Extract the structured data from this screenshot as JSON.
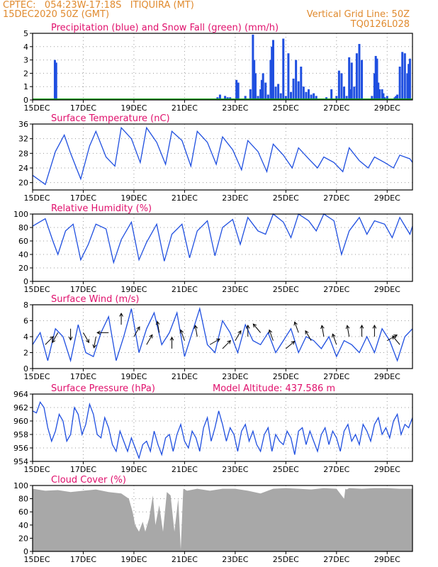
{
  "header": {
    "line1_left": "CPTEC:   054:23W-17:18S   ITIQUIRA (MT)",
    "line2_left": "15DEC2020 50Z (GMT)",
    "line2_right": "Vertical Grid Line: 50Z",
    "line3_right": "TQ0126L028"
  },
  "colors": {
    "header": "#e08a2e",
    "title": "#e0106c",
    "series": "#1f4fe0",
    "snow": "#12a012",
    "cloud": "#a8a8a8",
    "grid": "#9a9a9a",
    "arrow": "#000000"
  },
  "x_axis": {
    "ticks": [
      "15DEC",
      "17DEC",
      "19DEC",
      "21DEC",
      "23DEC",
      "25DEC",
      "27DEC",
      "29DEC"
    ],
    "tick_days": [
      0,
      2,
      4,
      6,
      8,
      10,
      12,
      14
    ],
    "range_days": [
      0,
      15
    ]
  },
  "chart_data": [
    {
      "type": "bar",
      "title": "Precipitation (blue) and Snow Fall (green) (mm/h)",
      "ylim": [
        0,
        5
      ],
      "yticks": [
        "0",
        "1",
        "2",
        "3",
        "4",
        "5"
      ],
      "ytick_values": [
        0,
        1,
        2,
        3,
        4,
        5
      ],
      "x_unit": "days since 15DEC 00Z",
      "series": [
        {
          "name": "Precipitation",
          "color": "#1f4fe0",
          "x": [
            0.88,
            0.93,
            7.3,
            7.4,
            7.6,
            7.7,
            7.8,
            8.05,
            8.12,
            8.4,
            8.6,
            8.7,
            8.75,
            8.8,
            8.9,
            9.0,
            9.05,
            9.1,
            9.2,
            9.3,
            9.4,
            9.45,
            9.5,
            9.6,
            9.7,
            9.8,
            9.9,
            10.0,
            10.1,
            10.2,
            10.3,
            10.4,
            10.5,
            10.6,
            10.7,
            10.8,
            10.9,
            11.0,
            11.1,
            11.2,
            11.4,
            11.6,
            11.8,
            12.0,
            12.1,
            12.2,
            12.3,
            12.4,
            12.5,
            12.55,
            12.6,
            12.7,
            12.8,
            12.9,
            13.0,
            13.4,
            13.5,
            13.55,
            13.6,
            13.65,
            13.7,
            13.8,
            13.85,
            13.9,
            14.0,
            14.1,
            14.2,
            14.3,
            14.35,
            14.4,
            14.5,
            14.6,
            14.7,
            14.8,
            14.85,
            14.9
          ],
          "y": [
            3.0,
            2.8,
            0.2,
            0.4,
            0.3,
            0.2,
            0.2,
            1.5,
            1.3,
            0.3,
            0.8,
            4.9,
            3.0,
            2.0,
            0.3,
            0.8,
            1.5,
            2.0,
            1.3,
            0.4,
            3.0,
            4.0,
            4.5,
            1.0,
            1.2,
            0.5,
            4.6,
            0.3,
            3.5,
            0.6,
            1.6,
            3.0,
            1.4,
            2.5,
            1.0,
            0.6,
            0.8,
            0.4,
            0.5,
            0.3,
            0.1,
            0.2,
            0.8,
            0.3,
            2.2,
            2.0,
            1.0,
            0.3,
            3.2,
            0.8,
            2.8,
            1.0,
            3.5,
            4.2,
            3.0,
            0.3,
            2.0,
            3.3,
            3.1,
            1.3,
            0.8,
            0.8,
            0.5,
            0.2,
            0.3,
            0.1,
            0.1,
            0.2,
            0.3,
            0.4,
            2.5,
            3.6,
            3.5,
            2.0,
            2.7,
            3.1
          ]
        },
        {
          "name": "Snow Fall",
          "color": "#12a012",
          "x": [
            0,
            15
          ],
          "y": [
            0,
            0
          ]
        }
      ]
    },
    {
      "type": "line",
      "title": "Surface Temperature (nC)",
      "ylim": [
        18,
        36
      ],
      "yticks": [
        "20",
        "24",
        "28",
        "32",
        "36"
      ],
      "ytick_values": [
        20,
        24,
        28,
        32,
        36
      ],
      "x": [
        0,
        0.5,
        0.9,
        1.25,
        1.5,
        1.9,
        2.25,
        2.5,
        2.9,
        3.25,
        3.5,
        3.9,
        4.25,
        4.5,
        4.9,
        5.25,
        5.5,
        5.9,
        6.25,
        6.5,
        6.9,
        7.25,
        7.5,
        7.9,
        8.25,
        8.5,
        8.9,
        9.25,
        9.5,
        9.9,
        10.25,
        10.5,
        10.9,
        11.25,
        11.5,
        11.9,
        12.25,
        12.5,
        12.9,
        13.25,
        13.5,
        13.9,
        14.25,
        14.5,
        14.9,
        15.0
      ],
      "series": [
        {
          "name": "Temperature",
          "color": "#1f4fe0",
          "values": [
            22.0,
            19.5,
            28.5,
            33.0,
            28.0,
            21.0,
            30.0,
            34.0,
            27.0,
            24.5,
            35.0,
            32.0,
            25.5,
            35.0,
            31.0,
            25.0,
            34.0,
            31.5,
            24.5,
            34.0,
            31.0,
            25.0,
            32.5,
            29.0,
            23.5,
            31.5,
            28.5,
            23.0,
            30.5,
            27.5,
            24.0,
            29.5,
            26.5,
            24.0,
            27.0,
            25.5,
            23.0,
            29.5,
            26.0,
            24.0,
            27.0,
            25.5,
            24.0,
            27.5,
            26.5,
            25.5
          ]
        }
      ]
    },
    {
      "type": "line",
      "title": "Relative Humidity (%)",
      "ylim": [
        0,
        100
      ],
      "yticks": [
        "0",
        "20",
        "40",
        "60",
        "80",
        "100"
      ],
      "ytick_values": [
        0,
        20,
        40,
        60,
        80,
        100
      ],
      "x": [
        0,
        0.5,
        0.8,
        1.0,
        1.3,
        1.6,
        1.9,
        2.2,
        2.5,
        2.9,
        3.2,
        3.5,
        3.9,
        4.2,
        4.5,
        4.9,
        5.2,
        5.5,
        5.9,
        6.2,
        6.5,
        6.9,
        7.2,
        7.5,
        7.9,
        8.2,
        8.5,
        8.9,
        9.2,
        9.5,
        9.9,
        10.2,
        10.5,
        10.9,
        11.2,
        11.5,
        11.9,
        12.2,
        12.5,
        12.9,
        13.2,
        13.5,
        13.9,
        14.2,
        14.5,
        14.9,
        15.0
      ],
      "series": [
        {
          "name": "Humidity",
          "color": "#1f4fe0",
          "values": [
            82,
            93,
            60,
            40,
            75,
            85,
            32,
            55,
            85,
            78,
            28,
            62,
            88,
            32,
            58,
            85,
            30,
            70,
            85,
            35,
            75,
            90,
            38,
            80,
            92,
            55,
            95,
            75,
            70,
            100,
            88,
            65,
            100,
            90,
            75,
            100,
            90,
            40,
            75,
            95,
            70,
            90,
            85,
            65,
            95,
            70,
            82
          ]
        }
      ]
    },
    {
      "type": "line",
      "title": "Surface Wind (m/s)",
      "ylim": [
        0,
        8
      ],
      "yticks": [
        "0",
        "2",
        "4",
        "6",
        "8"
      ],
      "ytick_values": [
        0,
        2,
        4,
        6,
        8
      ],
      "x": [
        0,
        0.3,
        0.6,
        0.9,
        1.2,
        1.5,
        1.8,
        2.1,
        2.4,
        2.7,
        3.0,
        3.3,
        3.6,
        3.9,
        4.2,
        4.5,
        4.8,
        5.1,
        5.4,
        5.7,
        6.0,
        6.3,
        6.6,
        6.9,
        7.2,
        7.5,
        7.8,
        8.1,
        8.4,
        8.7,
        9.0,
        9.3,
        9.6,
        9.9,
        10.2,
        10.5,
        10.8,
        11.1,
        11.4,
        11.7,
        12.0,
        12.3,
        12.6,
        12.9,
        13.2,
        13.5,
        13.8,
        14.1,
        14.4,
        14.7,
        15.0
      ],
      "series": [
        {
          "name": "Wind speed",
          "color": "#1f4fe0",
          "values": [
            3.0,
            4.5,
            1.0,
            5.0,
            4.0,
            1.0,
            5.5,
            2.0,
            1.5,
            4.5,
            6.5,
            1.0,
            4.0,
            7.5,
            2.0,
            5.0,
            7.0,
            3.0,
            4.5,
            7.0,
            1.5,
            4.5,
            7.5,
            3.0,
            2.0,
            6.0,
            4.5,
            2.0,
            5.5,
            3.5,
            3.0,
            4.5,
            2.0,
            3.5,
            5.0,
            2.0,
            4.0,
            3.5,
            2.5,
            4.0,
            1.5,
            3.5,
            3.0,
            2.0,
            4.0,
            2.0,
            5.0,
            3.5,
            1.0,
            4.0,
            5.0
          ]
        }
      ],
      "arrows": {
        "color": "#000000",
        "x": [
          0.5,
          1.0,
          1.5,
          2.0,
          2.5,
          3.0,
          3.5,
          4.0,
          4.5,
          5.0,
          5.5,
          6.0,
          6.5,
          7.0,
          7.5,
          8.0,
          8.5,
          9.0,
          9.5,
          10.0,
          10.5,
          11.0,
          11.5,
          12.0,
          12.5,
          13.0,
          13.5,
          14.0,
          14.5
        ],
        "speed": [
          3.0,
          4.5,
          5.0,
          4.5,
          4.0,
          4.5,
          5.5,
          4.0,
          3.0,
          4.5,
          2.5,
          3.5,
          4.0,
          3.0,
          2.5,
          3.5,
          4.0,
          4.5,
          3.5,
          2.5,
          4.5,
          3.5,
          4.0,
          3.0,
          4.0,
          4.0,
          4.0,
          3.5,
          3.0
        ],
        "dir_deg": [
          45,
          240,
          270,
          300,
          260,
          180,
          90,
          60,
          60,
          100,
          90,
          110,
          100,
          30,
          45,
          60,
          90,
          130,
          110,
          40,
          110,
          120,
          100,
          110,
          100,
          90,
          90,
          30,
          130
        ]
      }
    },
    {
      "type": "line",
      "title": "Surface Pressure (hPa)",
      "annotation": "Model Altitude: 437.586 m",
      "ylim": [
        954,
        964
      ],
      "yticks": [
        "954",
        "956",
        "958",
        "960",
        "962",
        "964"
      ],
      "ytick_values": [
        954,
        956,
        958,
        960,
        962,
        964
      ],
      "x": [
        0,
        0.15,
        0.3,
        0.45,
        0.6,
        0.75,
        0.9,
        1.05,
        1.2,
        1.35,
        1.5,
        1.65,
        1.8,
        1.95,
        2.1,
        2.25,
        2.4,
        2.55,
        2.7,
        2.85,
        3.0,
        3.15,
        3.3,
        3.45,
        3.6,
        3.75,
        3.9,
        4.05,
        4.2,
        4.35,
        4.5,
        4.65,
        4.8,
        4.95,
        5.1,
        5.25,
        5.4,
        5.55,
        5.7,
        5.85,
        6.0,
        6.15,
        6.3,
        6.45,
        6.6,
        6.75,
        6.9,
        7.05,
        7.2,
        7.35,
        7.5,
        7.65,
        7.8,
        7.95,
        8.1,
        8.25,
        8.4,
        8.55,
        8.7,
        8.85,
        9.0,
        9.15,
        9.3,
        9.45,
        9.6,
        9.75,
        9.9,
        10.05,
        10.2,
        10.35,
        10.5,
        10.65,
        10.8,
        10.95,
        11.1,
        11.25,
        11.4,
        11.55,
        11.7,
        11.85,
        12.0,
        12.15,
        12.3,
        12.45,
        12.6,
        12.75,
        12.9,
        13.05,
        13.2,
        13.35,
        13.5,
        13.65,
        13.8,
        13.95,
        14.1,
        14.25,
        14.4,
        14.55,
        14.7,
        14.85,
        15.0
      ],
      "series": [
        {
          "name": "Pressure",
          "color": "#1f4fe0",
          "values": [
            961.5,
            961.2,
            962.8,
            962.0,
            959.0,
            957.0,
            958.5,
            961.0,
            960.0,
            957.0,
            958.0,
            962.0,
            961.0,
            958.0,
            959.5,
            962.5,
            961.0,
            958.0,
            957.5,
            960.5,
            959.0,
            956.5,
            955.5,
            958.5,
            957.0,
            955.5,
            957.5,
            956.0,
            954.5,
            956.5,
            957.0,
            955.5,
            958.5,
            956.5,
            955.0,
            957.5,
            958.0,
            955.5,
            958.0,
            959.5,
            957.0,
            956.0,
            958.5,
            957.5,
            955.5,
            959.0,
            960.5,
            957.0,
            959.0,
            961.5,
            959.5,
            957.0,
            959.0,
            958.0,
            955.5,
            958.5,
            959.5,
            957.0,
            958.5,
            956.5,
            955.5,
            958.0,
            959.0,
            955.5,
            958.0,
            957.0,
            956.5,
            958.5,
            957.5,
            955.0,
            958.5,
            959.0,
            956.5,
            958.5,
            957.0,
            955.5,
            958.0,
            959.0,
            956.5,
            958.5,
            957.5,
            955.5,
            958.5,
            959.5,
            957.0,
            958.0,
            956.5,
            959.5,
            958.5,
            957.0,
            959.5,
            960.5,
            958.0,
            959.0,
            957.5,
            960.0,
            961.0,
            958.0,
            959.5,
            959.0,
            960.5
          ]
        }
      ]
    },
    {
      "type": "area",
      "title": "Cloud Cover (%)",
      "ylim": [
        0,
        100
      ],
      "yticks": [
        "0",
        "20",
        "40",
        "60",
        "80",
        "100"
      ],
      "ytick_values": [
        0,
        20,
        40,
        60,
        80,
        100
      ],
      "x": [
        0,
        0.5,
        1.0,
        1.5,
        2.0,
        2.5,
        3.0,
        3.5,
        3.8,
        3.95,
        4.05,
        4.2,
        4.35,
        4.45,
        4.6,
        4.75,
        4.85,
        5.0,
        5.15,
        5.3,
        5.45,
        5.6,
        5.75,
        5.85,
        5.95,
        6.1,
        6.5,
        7.0,
        7.5,
        8.0,
        8.5,
        9.0,
        9.5,
        10.0,
        10.5,
        11.0,
        11.5,
        12.0,
        12.3,
        12.35,
        12.4,
        12.5,
        13.0,
        13.5,
        14.0,
        14.5,
        15.0
      ],
      "series": [
        {
          "name": "Cloud cover",
          "color": "#a8a8a8",
          "values": [
            95,
            92,
            93,
            90,
            92,
            94,
            90,
            88,
            80,
            60,
            40,
            30,
            45,
            30,
            50,
            85,
            40,
            70,
            30,
            90,
            85,
            30,
            80,
            3,
            95,
            92,
            95,
            92,
            95,
            95,
            92,
            88,
            95,
            96,
            95,
            94,
            96,
            95,
            80,
            95,
            94,
            96,
            95,
            96,
            96,
            95,
            95
          ]
        }
      ]
    }
  ]
}
